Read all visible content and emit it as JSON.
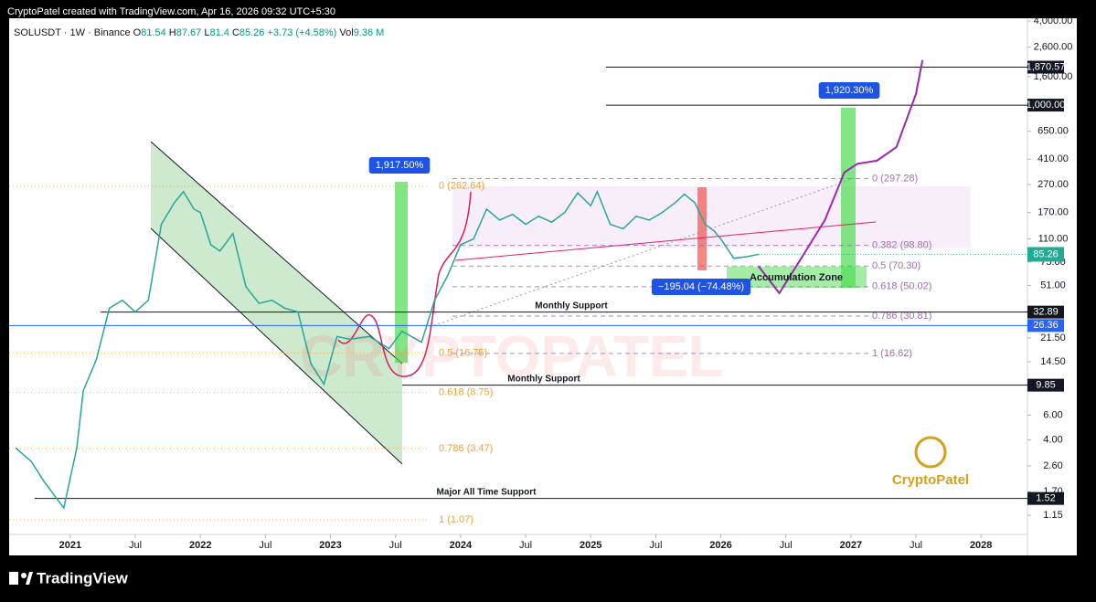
{
  "chart_data": {
    "type": "line",
    "caption": "CryptoPatel created with TradingView.com, Apr 16, 2026 09:32 UTC+5:30",
    "title": "SOLUSDT · 1W · Binance",
    "ohlc": [
      {
        "name": "O",
        "value": 81.54
      },
      {
        "name": "H",
        "value": 87.67
      },
      {
        "name": "L",
        "value": 81.4
      },
      {
        "name": "C",
        "value": 85.26
      }
    ],
    "change": "+3.73 (+4.58%)",
    "volume": {
      "name": "Vol",
      "value": "9.36 M"
    },
    "watermark": "CRYPTOPATEL",
    "logo": "CryptoPatel",
    "brand": "TradingView",
    "log_scale": true,
    "grid": false,
    "xlim": [
      2020.53,
      2028.35
    ],
    "xticks": [
      {
        "value": 2021,
        "label": "2021"
      },
      {
        "value": 2021.5,
        "label": "Jul"
      },
      {
        "value": 2022,
        "label": "2022"
      },
      {
        "value": 2022.5,
        "label": "Jul"
      },
      {
        "value": 2023,
        "label": "2023"
      },
      {
        "value": 2023.5,
        "label": "Jul"
      },
      {
        "value": 2024,
        "label": "2024"
      },
      {
        "value": 2024.5,
        "label": "Jul"
      },
      {
        "value": 2025,
        "label": "2025"
      },
      {
        "value": 2025.5,
        "label": "Jul"
      },
      {
        "value": 2026,
        "label": "2026"
      },
      {
        "value": 2026.5,
        "label": "Jul"
      },
      {
        "value": 2027,
        "label": "2027"
      },
      {
        "value": 2027.5,
        "label": "Jul"
      },
      {
        "value": 2028,
        "label": "2028"
      }
    ],
    "ylim": [
      0.84,
      4190
    ],
    "yticks": [
      {
        "value": 4000,
        "label": "4,000.00"
      },
      {
        "value": 2600,
        "label": "2,600.00"
      },
      {
        "value": 1600,
        "label": "1,600.00"
      },
      {
        "value": 650,
        "label": "650.00"
      },
      {
        "value": 410,
        "label": "410.00"
      },
      {
        "value": 270,
        "label": "270.00"
      },
      {
        "value": 170,
        "label": "170.00"
      },
      {
        "value": 110,
        "label": "110.00"
      },
      {
        "value": 75,
        "label": "75.00"
      },
      {
        "value": 51,
        "label": "51.00"
      },
      {
        "value": 21.5,
        "label": "21.50"
      },
      {
        "value": 14.5,
        "label": "14.50"
      },
      {
        "value": 6,
        "label": "6.00"
      },
      {
        "value": 4,
        "label": "4.00"
      },
      {
        "value": 2.6,
        "label": "2.60"
      },
      {
        "value": 1.7,
        "label": "1.70"
      },
      {
        "value": 1.15,
        "label": "1.15"
      }
    ],
    "series": [
      {
        "color": "#26a69a",
        "x": [
          2020.58,
          2020.7,
          2020.8,
          2020.9,
          2020.95,
          2021.05,
          2021.1,
          2021.2,
          2021.3,
          2021.4,
          2021.5,
          2021.6,
          2021.65,
          2021.7,
          2021.8,
          2021.87,
          2021.95,
          2022.0,
          2022.08,
          2022.15,
          2022.25,
          2022.35,
          2022.45,
          2022.55,
          2022.65,
          2022.75,
          2022.85,
          2022.95,
          2023.05,
          2023.15,
          2023.3,
          2023.45,
          2023.55,
          2023.7,
          2023.8,
          2023.9,
          2024.0,
          2024.1,
          2024.2,
          2024.3,
          2024.4,
          2024.5,
          2024.6,
          2024.7,
          2024.8,
          2024.9,
          2025.0,
          2025.05,
          2025.15,
          2025.25,
          2025.35,
          2025.45,
          2025.55,
          2025.65,
          2025.72,
          2025.8,
          2025.88,
          2025.95,
          2026.0,
          2026.1,
          2026.2,
          2026.29
        ],
        "values": [
          3.5,
          2.8,
          2.0,
          1.5,
          1.3,
          3.5,
          9,
          15,
          35,
          40,
          33,
          40,
          75,
          140,
          200,
          240,
          180,
          170,
          100,
          90,
          120,
          50,
          38,
          40,
          35,
          33,
          14,
          10,
          22,
          21,
          22,
          18,
          24,
          20,
          40,
          60,
          100,
          110,
          180,
          150,
          165,
          140,
          160,
          145,
          170,
          235,
          190,
          240,
          140,
          130,
          160,
          150,
          170,
          200,
          230,
          200,
          140,
          125,
          110,
          80,
          82,
          85.26
        ]
      },
      {
        "color": "#9c27b0",
        "x": [
          2026.29,
          2026.45,
          2026.6,
          2026.8,
          2026.95,
          2027.05,
          2027.2,
          2027.35,
          2027.5,
          2027.55
        ],
        "values": [
          70,
          45,
          75,
          150,
          330,
          380,
          400,
          500,
          1200,
          2100
        ]
      }
    ],
    "last_price": {
      "value": 85.26,
      "label": "85.26",
      "color": "#22ab94"
    },
    "levels": [
      {
        "value": 1870.57,
        "label": "1,870.57",
        "color": "#131722"
      },
      {
        "value": 1000,
        "label": "1,000.00",
        "color": "#131722"
      },
      {
        "value": 32.89,
        "label": "32.89",
        "color": "#131722",
        "note": "Monthly Support"
      },
      {
        "value": 26.36,
        "label": "26.36",
        "color": "#2962ff"
      },
      {
        "value": 9.85,
        "label": "9.85",
        "color": "#131722",
        "note": "Monthly Support"
      },
      {
        "value": 1.52,
        "label": "1.52",
        "color": "#131722",
        "note": "Major All Time Support"
      }
    ],
    "fib_right": [
      {
        "value": 297.28,
        "label": "0 (297.28)"
      },
      {
        "value": 98.8,
        "label": "0.382 (98.80)"
      },
      {
        "value": 70.3,
        "label": "0.5 (70.30)"
      },
      {
        "value": 50.02,
        "label": "0.618 (50.02)"
      },
      {
        "value": 30.81,
        "label": "0.786 (30.81)"
      },
      {
        "value": 16.62,
        "label": "1 (16.62)"
      }
    ],
    "fib_left": [
      {
        "value": 262.64,
        "label": "0 (262.64)"
      },
      {
        "value": 16.75,
        "label": "0.5 (16.75)"
      },
      {
        "value": 8.75,
        "label": "0.618 (8.75)"
      },
      {
        "value": 3.47,
        "label": "0.786 (3.47)"
      },
      {
        "value": 1.07,
        "label": "1 (1.07)"
      }
    ],
    "annotations": [
      "1,917.50%",
      "1,920.30%",
      "−195.04 (−74.48%)",
      "Accumulation Zone"
    ]
  }
}
